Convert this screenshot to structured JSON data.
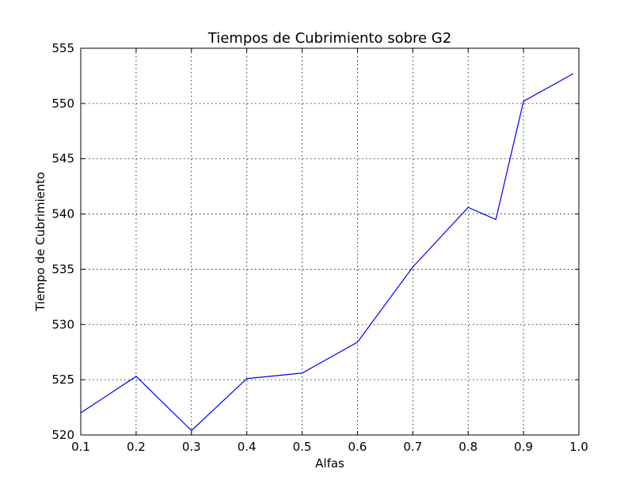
{
  "chart_data": {
    "type": "line",
    "title": "Tiempos de Cubrimiento sobre G2",
    "xlabel": "Alfas",
    "ylabel": "Tiempo de Cubrimiento",
    "xlim": [
      0.1,
      1.0
    ],
    "ylim": [
      520,
      555
    ],
    "xticks": [
      "0.1",
      "0.2",
      "0.3",
      "0.4",
      "0.5",
      "0.6",
      "0.7",
      "0.8",
      "0.9",
      "1.0"
    ],
    "yticks": [
      "520",
      "525",
      "530",
      "535",
      "540",
      "545",
      "550",
      "555"
    ],
    "grid": true,
    "legend": "none",
    "series": [
      {
        "color": "#0000ff",
        "x": [
          0.1,
          0.2,
          0.3,
          0.4,
          0.5,
          0.6,
          0.7,
          0.8,
          0.85,
          0.9,
          0.99
        ],
        "y": [
          522.0,
          525.3,
          520.4,
          525.1,
          525.6,
          528.4,
          535.2,
          540.6,
          539.5,
          550.2,
          552.7
        ]
      }
    ]
  }
}
